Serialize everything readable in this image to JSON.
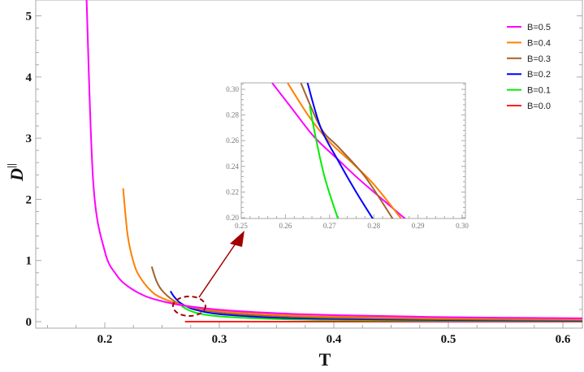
{
  "chart_data": {
    "type": "line",
    "xlabel": "T",
    "ylabel": "D",
    "ylabel_superscript": "||",
    "xlim": [
      0.14,
      0.618
    ],
    "ylim": [
      -0.1,
      5.25
    ],
    "xticks": [
      0.2,
      0.3,
      0.4,
      0.5,
      0.6
    ],
    "xtick_labels": [
      "0.2",
      "0.3",
      "0.4",
      "0.5",
      "0.6"
    ],
    "yticks": [
      0,
      1,
      2,
      3,
      4,
      5
    ],
    "ytick_labels": [
      "0",
      "1",
      "2",
      "3",
      "4",
      "5"
    ],
    "grid": false,
    "legend_placement": "top-right",
    "series": [
      {
        "name": "B=0.5",
        "color": "#ff00ff",
        "x": [
          0.184,
          0.19,
          0.2,
          0.21,
          0.22,
          0.235,
          0.25,
          0.27,
          0.3,
          0.35,
          0.4,
          0.5,
          0.618
        ],
        "y": [
          5.34,
          2.26,
          1.15,
          0.77,
          0.58,
          0.42,
          0.334,
          0.26,
          0.195,
          0.138,
          0.107,
          0.073,
          0.054
        ]
      },
      {
        "name": "B=0.4",
        "color": "#ff8000",
        "x": [
          0.216,
          0.22,
          0.225,
          0.23,
          0.24,
          0.25,
          0.27,
          0.3,
          0.35,
          0.4,
          0.5,
          0.618
        ],
        "y": [
          2.18,
          1.41,
          0.98,
          0.75,
          0.51,
          0.386,
          0.26,
          0.175,
          0.113,
          0.083,
          0.055,
          0.039
        ]
      },
      {
        "name": "B=0.3",
        "color": "#a0642d",
        "x": [
          0.241,
          0.245,
          0.25,
          0.26,
          0.27,
          0.3,
          0.35,
          0.4,
          0.5,
          0.618
        ],
        "y": [
          0.9,
          0.67,
          0.51,
          0.345,
          0.26,
          0.15,
          0.088,
          0.062,
          0.039,
          0.027
        ]
      },
      {
        "name": "B=0.2",
        "color": "#0000ff",
        "x": [
          0.2574,
          0.26,
          0.265,
          0.272,
          0.28,
          0.3,
          0.35,
          0.4,
          0.5,
          0.618
        ],
        "y": [
          0.5,
          0.42,
          0.32,
          0.244,
          0.19,
          0.123,
          0.066,
          0.045,
          0.027,
          0.019
        ]
      },
      {
        "name": "B=0.1",
        "color": "#00ee00",
        "x": [
          0.2655,
          0.27,
          0.28,
          0.3,
          0.35,
          0.4,
          0.5,
          0.618
        ],
        "y": [
          0.287,
          0.22,
          0.144,
          0.086,
          0.043,
          0.028,
          0.017,
          0.012
        ]
      },
      {
        "name": "B=0.0",
        "color": "#ff2020",
        "x": [
          0.27,
          0.618
        ],
        "y": [
          0,
          0
        ]
      }
    ],
    "inset": {
      "xlim": [
        0.25,
        0.3007
      ],
      "ylim": [
        0.198,
        0.306
      ],
      "xticks": [
        0.25,
        0.26,
        0.27,
        0.28,
        0.29,
        0.3
      ],
      "xtick_labels": [
        "0.25",
        "0.26",
        "0.27",
        "0.28",
        "0.29",
        "0.30"
      ],
      "yticks": [
        0.2,
        0.22,
        0.24,
        0.26,
        0.28,
        0.3
      ],
      "ytick_labels": [
        "0.20",
        "0.22",
        "0.24",
        "0.26",
        "0.28",
        "0.30"
      ],
      "series": [
        {
          "name": "B=0.5",
          "color": "#ff00ff",
          "x": [
            0.257,
            0.2615,
            0.2665,
            0.272,
            0.276,
            0.28,
            0.2875
          ],
          "y": [
            0.305,
            0.285,
            0.263,
            0.245,
            0.232,
            0.22,
            0.198
          ]
        },
        {
          "name": "B=0.4",
          "color": "#ff8000",
          "x": [
            0.2605,
            0.2655,
            0.27,
            0.275,
            0.28,
            0.2865
          ],
          "y": [
            0.305,
            0.278,
            0.259,
            0.243,
            0.226,
            0.198
          ]
        },
        {
          "name": "B=0.3",
          "color": "#a0642d",
          "x": [
            0.2635,
            0.268,
            0.272,
            0.278,
            0.2845
          ],
          "y": [
            0.305,
            0.27,
            0.255,
            0.232,
            0.198
          ]
        },
        {
          "name": "B=0.2",
          "color": "#0000ff",
          "x": [
            0.265,
            0.268,
            0.272,
            0.276,
            0.28
          ],
          "y": [
            0.305,
            0.27,
            0.244,
            0.22,
            0.198
          ]
        },
        {
          "name": "B=0.1",
          "color": "#00ee00",
          "x": [
            0.2655,
            0.267,
            0.269,
            0.272
          ],
          "y": [
            0.287,
            0.26,
            0.23,
            0.198
          ]
        }
      ]
    },
    "annotation": {
      "type": "dashed-ellipse-with-arrow",
      "color": "#a00000",
      "points_to": "inset"
    }
  }
}
